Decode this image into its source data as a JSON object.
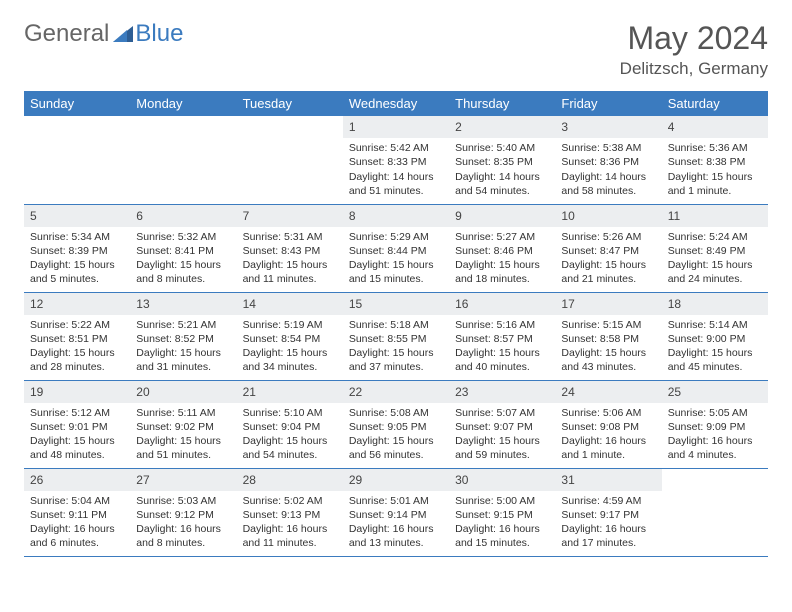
{
  "logo": {
    "general": "General",
    "blue": "Blue"
  },
  "title": "May 2024",
  "location": "Delitzsch, Germany",
  "colors": {
    "header_bg": "#3b7bbf",
    "header_text": "#ffffff",
    "daynum_bg": "#eceef0",
    "row_border": "#3b7bbf",
    "text": "#333333",
    "page_bg": "#ffffff",
    "logo_gray": "#666666",
    "logo_blue": "#3b7bbf"
  },
  "weekdays": [
    "Sunday",
    "Monday",
    "Tuesday",
    "Wednesday",
    "Thursday",
    "Friday",
    "Saturday"
  ],
  "weeks": [
    [
      {
        "n": "",
        "sr": "",
        "ss": "",
        "dl": ""
      },
      {
        "n": "",
        "sr": "",
        "ss": "",
        "dl": ""
      },
      {
        "n": "",
        "sr": "",
        "ss": "",
        "dl": ""
      },
      {
        "n": "1",
        "sr": "Sunrise: 5:42 AM",
        "ss": "Sunset: 8:33 PM",
        "dl": "Daylight: 14 hours and 51 minutes."
      },
      {
        "n": "2",
        "sr": "Sunrise: 5:40 AM",
        "ss": "Sunset: 8:35 PM",
        "dl": "Daylight: 14 hours and 54 minutes."
      },
      {
        "n": "3",
        "sr": "Sunrise: 5:38 AM",
        "ss": "Sunset: 8:36 PM",
        "dl": "Daylight: 14 hours and 58 minutes."
      },
      {
        "n": "4",
        "sr": "Sunrise: 5:36 AM",
        "ss": "Sunset: 8:38 PM",
        "dl": "Daylight: 15 hours and 1 minute."
      }
    ],
    [
      {
        "n": "5",
        "sr": "Sunrise: 5:34 AM",
        "ss": "Sunset: 8:39 PM",
        "dl": "Daylight: 15 hours and 5 minutes."
      },
      {
        "n": "6",
        "sr": "Sunrise: 5:32 AM",
        "ss": "Sunset: 8:41 PM",
        "dl": "Daylight: 15 hours and 8 minutes."
      },
      {
        "n": "7",
        "sr": "Sunrise: 5:31 AM",
        "ss": "Sunset: 8:43 PM",
        "dl": "Daylight: 15 hours and 11 minutes."
      },
      {
        "n": "8",
        "sr": "Sunrise: 5:29 AM",
        "ss": "Sunset: 8:44 PM",
        "dl": "Daylight: 15 hours and 15 minutes."
      },
      {
        "n": "9",
        "sr": "Sunrise: 5:27 AM",
        "ss": "Sunset: 8:46 PM",
        "dl": "Daylight: 15 hours and 18 minutes."
      },
      {
        "n": "10",
        "sr": "Sunrise: 5:26 AM",
        "ss": "Sunset: 8:47 PM",
        "dl": "Daylight: 15 hours and 21 minutes."
      },
      {
        "n": "11",
        "sr": "Sunrise: 5:24 AM",
        "ss": "Sunset: 8:49 PM",
        "dl": "Daylight: 15 hours and 24 minutes."
      }
    ],
    [
      {
        "n": "12",
        "sr": "Sunrise: 5:22 AM",
        "ss": "Sunset: 8:51 PM",
        "dl": "Daylight: 15 hours and 28 minutes."
      },
      {
        "n": "13",
        "sr": "Sunrise: 5:21 AM",
        "ss": "Sunset: 8:52 PM",
        "dl": "Daylight: 15 hours and 31 minutes."
      },
      {
        "n": "14",
        "sr": "Sunrise: 5:19 AM",
        "ss": "Sunset: 8:54 PM",
        "dl": "Daylight: 15 hours and 34 minutes."
      },
      {
        "n": "15",
        "sr": "Sunrise: 5:18 AM",
        "ss": "Sunset: 8:55 PM",
        "dl": "Daylight: 15 hours and 37 minutes."
      },
      {
        "n": "16",
        "sr": "Sunrise: 5:16 AM",
        "ss": "Sunset: 8:57 PM",
        "dl": "Daylight: 15 hours and 40 minutes."
      },
      {
        "n": "17",
        "sr": "Sunrise: 5:15 AM",
        "ss": "Sunset: 8:58 PM",
        "dl": "Daylight: 15 hours and 43 minutes."
      },
      {
        "n": "18",
        "sr": "Sunrise: 5:14 AM",
        "ss": "Sunset: 9:00 PM",
        "dl": "Daylight: 15 hours and 45 minutes."
      }
    ],
    [
      {
        "n": "19",
        "sr": "Sunrise: 5:12 AM",
        "ss": "Sunset: 9:01 PM",
        "dl": "Daylight: 15 hours and 48 minutes."
      },
      {
        "n": "20",
        "sr": "Sunrise: 5:11 AM",
        "ss": "Sunset: 9:02 PM",
        "dl": "Daylight: 15 hours and 51 minutes."
      },
      {
        "n": "21",
        "sr": "Sunrise: 5:10 AM",
        "ss": "Sunset: 9:04 PM",
        "dl": "Daylight: 15 hours and 54 minutes."
      },
      {
        "n": "22",
        "sr": "Sunrise: 5:08 AM",
        "ss": "Sunset: 9:05 PM",
        "dl": "Daylight: 15 hours and 56 minutes."
      },
      {
        "n": "23",
        "sr": "Sunrise: 5:07 AM",
        "ss": "Sunset: 9:07 PM",
        "dl": "Daylight: 15 hours and 59 minutes."
      },
      {
        "n": "24",
        "sr": "Sunrise: 5:06 AM",
        "ss": "Sunset: 9:08 PM",
        "dl": "Daylight: 16 hours and 1 minute."
      },
      {
        "n": "25",
        "sr": "Sunrise: 5:05 AM",
        "ss": "Sunset: 9:09 PM",
        "dl": "Daylight: 16 hours and 4 minutes."
      }
    ],
    [
      {
        "n": "26",
        "sr": "Sunrise: 5:04 AM",
        "ss": "Sunset: 9:11 PM",
        "dl": "Daylight: 16 hours and 6 minutes."
      },
      {
        "n": "27",
        "sr": "Sunrise: 5:03 AM",
        "ss": "Sunset: 9:12 PM",
        "dl": "Daylight: 16 hours and 8 minutes."
      },
      {
        "n": "28",
        "sr": "Sunrise: 5:02 AM",
        "ss": "Sunset: 9:13 PM",
        "dl": "Daylight: 16 hours and 11 minutes."
      },
      {
        "n": "29",
        "sr": "Sunrise: 5:01 AM",
        "ss": "Sunset: 9:14 PM",
        "dl": "Daylight: 16 hours and 13 minutes."
      },
      {
        "n": "30",
        "sr": "Sunrise: 5:00 AM",
        "ss": "Sunset: 9:15 PM",
        "dl": "Daylight: 16 hours and 15 minutes."
      },
      {
        "n": "31",
        "sr": "Sunrise: 4:59 AM",
        "ss": "Sunset: 9:17 PM",
        "dl": "Daylight: 16 hours and 17 minutes."
      },
      {
        "n": "",
        "sr": "",
        "ss": "",
        "dl": ""
      }
    ]
  ]
}
